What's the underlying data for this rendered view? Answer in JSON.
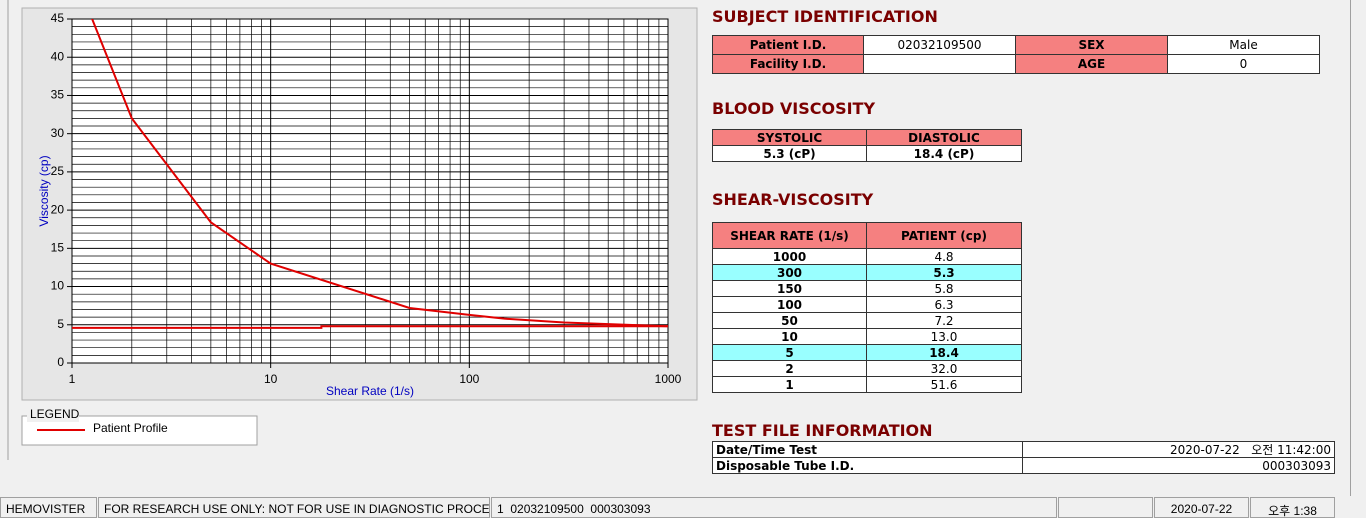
{
  "chart_data": {
    "type": "line",
    "xlabel": "Shear Rate (1/s)",
    "ylabel": "Viscosity (cp)",
    "xscale": "log",
    "xlim": [
      1,
      1000
    ],
    "ylim": [
      0,
      45
    ],
    "xticks": [
      1,
      10,
      100,
      1000
    ],
    "yticks": [
      0,
      5,
      10,
      15,
      20,
      25,
      30,
      35,
      40,
      45
    ],
    "grid": true,
    "legend_title": "LEGEND",
    "series": [
      {
        "name": "Patient Profile",
        "color": "#e00000",
        "x": [
          1,
          2,
          5,
          10,
          50,
          100,
          150,
          300,
          1000
        ],
        "values": [
          51.6,
          32.0,
          18.4,
          13.0,
          7.2,
          6.3,
          5.8,
          5.3,
          4.8
        ]
      },
      {
        "color": "#e00000",
        "x": [
          1,
          18,
          18,
          1000
        ],
        "values": [
          4.6,
          4.6,
          4.8,
          4.8
        ]
      }
    ]
  },
  "subject_identification": {
    "title": "SUBJECT IDENTIFICATION",
    "rows": [
      [
        "Patient I.D.",
        "02032109500",
        "SEX",
        "Male"
      ],
      [
        "Facility I.D.",
        null,
        "AGE",
        "0"
      ]
    ]
  },
  "blood_viscosity": {
    "title": "BLOOD VISCOSITY",
    "headers": [
      "SYSTOLIC",
      "DIASTOLIC"
    ],
    "values": [
      "5.3 (cP)",
      "18.4 (cP)"
    ]
  },
  "shear_viscosity": {
    "title": "SHEAR-VISCOSITY",
    "headers": [
      "SHEAR RATE (1/s)",
      "PATIENT (cp)"
    ],
    "rows": [
      [
        "1000",
        "4.8"
      ],
      [
        "300",
        "5.3"
      ],
      [
        "150",
        "5.8"
      ],
      [
        "100",
        "6.3"
      ],
      [
        "50",
        "7.2"
      ],
      [
        "10",
        "13.0"
      ],
      [
        "5",
        "18.4"
      ],
      [
        "2",
        "32.0"
      ],
      [
        "1",
        "51.6"
      ]
    ],
    "highlighted_rows": [
      1,
      6
    ],
    "highlight_color": "#99ffff"
  },
  "test_file_information": {
    "title": "TEST FILE INFORMATION",
    "rows": [
      [
        "Date/Time Test",
        "2020-07-22   오전 11:42:00"
      ],
      [
        "Disposable Tube I.D.",
        "000303093"
      ]
    ]
  },
  "status_bar": [
    "HEMOVISTER",
    "FOR RESEARCH USE ONLY: NOT FOR USE IN DIAGNOSTIC PROCEDURES",
    "1  02032109500  000303093",
    null,
    "2020-07-22",
    "오후 1:38"
  ]
}
